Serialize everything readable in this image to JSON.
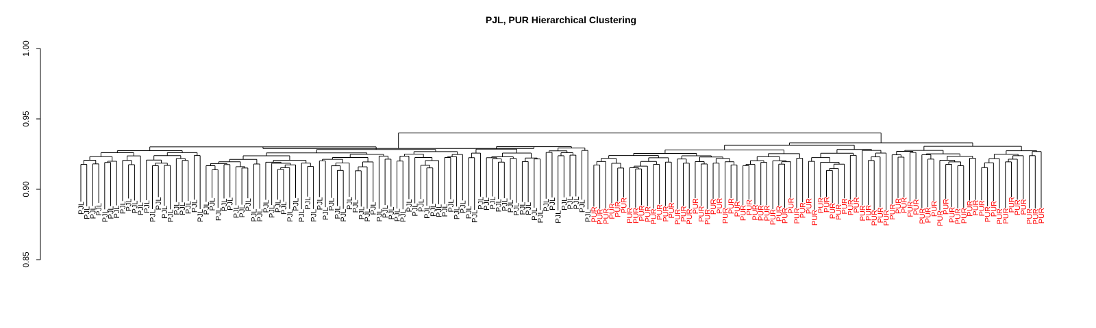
{
  "chart_data": {
    "type": "dendrogram",
    "title": "PJL, PUR Hierarchical Clustering",
    "xlabel": "",
    "ylabel": "",
    "ylim": [
      0.85,
      1.0
    ],
    "y_ticks": [
      "0.85",
      "0.90",
      "0.95",
      "1.00"
    ],
    "grid": false,
    "colors": {
      "PJL": "#000000",
      "PUR": "#ff0000"
    },
    "root_height": 0.94,
    "branches": [
      {
        "name": "PJL",
        "merge_height": 0.929,
        "leaf_count": 86,
        "leaf_label": "PJL"
      },
      {
        "name": "PUR",
        "merge_height": 0.933,
        "leaf_count": 76,
        "leaf_label": "PUR"
      }
    ]
  }
}
